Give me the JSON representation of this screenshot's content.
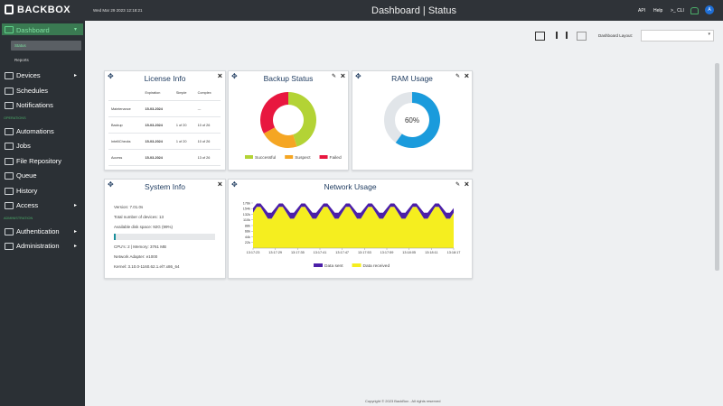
{
  "header": {
    "logo": "BACKBOX",
    "datetime": "Wed Mar 29 2023 12:18:21",
    "title": "Dashboard",
    "subtitle": "Status",
    "links": [
      "API",
      "Help",
      ">_ CLI"
    ],
    "avatar": "A"
  },
  "sidebar": {
    "dashboard": "Dashboard",
    "dashboard_sub": [
      "Status",
      "Reports"
    ],
    "main": [
      "Devices",
      "Schedules",
      "Notifications"
    ],
    "operations_heading": "OPERATIONS",
    "operations": [
      "Automations",
      "Jobs",
      "File Repository",
      "Queue",
      "History",
      "Access"
    ],
    "administration_heading": "ADMINISTRATION",
    "administration": [
      "Authentication",
      "Administration"
    ]
  },
  "toolbar": {
    "layout_label": "Dashboard Layout:"
  },
  "license": {
    "title": "License Info",
    "columns": [
      "Expiration",
      "Simple",
      "Complex"
    ],
    "rows": [
      [
        "Maintenance",
        "15-03-2024",
        null,
        "---"
      ],
      [
        "Backup",
        "15-03-2024",
        "1 of 20",
        "10 of 26"
      ],
      [
        "IntelliChecks",
        "15-03-2024",
        "1 of 20",
        "10 of 26"
      ],
      [
        "Access",
        "15-03-2024",
        null,
        "13 of 26"
      ]
    ]
  },
  "backup_status": {
    "type": "pie",
    "title": "Backup Status",
    "categories": [
      "Successful",
      "Suspect",
      "Failed"
    ],
    "values": [
      45,
      22,
      33
    ],
    "colors": [
      "#b3d335",
      "#f5a623",
      "#e8173f"
    ]
  },
  "ram_usage": {
    "type": "gauge",
    "title": "RAM Usage",
    "value": 60,
    "value_label": "60%",
    "range": [
      0,
      100
    ],
    "color": "#1a9bdc",
    "track_color": "#e1e5e9"
  },
  "system_info": {
    "title": "System Info",
    "lines": [
      "Version: 7.01.0s",
      "Total number of devices: 13",
      "Available disk space: 92G (99%)",
      "CPU's: 2 | Memory: 3761 MB",
      "Network Adapter: e1000",
      "Kernel: 3.10.0-1160.62.1.el7.x86_64"
    ]
  },
  "network_usage": {
    "type": "area",
    "title": "Network Usage",
    "x": [
      0,
      1,
      2,
      3,
      4,
      5,
      6,
      7,
      8,
      9,
      10,
      11,
      12,
      13,
      14,
      15,
      16,
      17,
      18,
      19,
      20,
      21,
      22,
      23,
      24,
      25,
      26,
      27,
      28,
      29,
      30,
      31,
      32,
      33,
      34,
      35,
      36,
      37,
      38,
      39,
      40,
      41,
      42,
      43,
      44,
      45,
      46,
      47,
      48,
      49,
      50,
      51,
      52,
      53,
      54
    ],
    "xlim": [
      0,
      54
    ],
    "xticks": [
      {
        "value": 0,
        "label": "13:17:23"
      },
      {
        "value": 6,
        "label": "13:17:29"
      },
      {
        "value": 12,
        "label": "13:17:35"
      },
      {
        "value": 18,
        "label": "13:17:41"
      },
      {
        "value": 24,
        "label": "13:17:47"
      },
      {
        "value": 30,
        "label": "13:17:53"
      },
      {
        "value": 36,
        "label": "13:17:59"
      },
      {
        "value": 42,
        "label": "13:18:05"
      },
      {
        "value": 48,
        "label": "13:18:11"
      },
      {
        "value": 54,
        "label": "13:18:17"
      }
    ],
    "ylim": [
      0,
      190
    ],
    "yticks": [
      {
        "value": 22,
        "label": "22k"
      },
      {
        "value": 44,
        "label": "44k"
      },
      {
        "value": 66,
        "label": "66k"
      },
      {
        "value": 88,
        "label": "88k"
      },
      {
        "value": 110,
        "label": "110k"
      },
      {
        "value": 132,
        "label": "132k"
      },
      {
        "value": 154,
        "label": "154k"
      },
      {
        "value": 176,
        "label": "176k"
      }
    ],
    "series": [
      {
        "name": "Data received",
        "color": "#f5ee1f",
        "values": [
          138,
          161,
          161,
          138,
          115,
          115,
          138,
          161,
          161,
          138,
          115,
          115,
          138,
          161,
          161,
          138,
          115,
          115,
          138,
          161,
          161,
          138,
          115,
          115,
          138,
          161,
          161,
          138,
          115,
          115,
          138,
          161,
          161,
          138,
          115,
          115,
          138,
          161,
          161,
          138,
          115,
          115,
          138,
          161,
          161,
          138,
          115,
          115,
          138,
          161,
          161,
          138,
          115,
          115,
          138
        ]
      },
      {
        "name": "Data sent",
        "color": "#4b1fa8",
        "values": [
          18,
          13,
          13,
          18,
          23,
          23,
          18,
          13,
          13,
          18,
          23,
          23,
          18,
          13,
          13,
          18,
          23,
          23,
          18,
          13,
          13,
          18,
          23,
          23,
          18,
          13,
          13,
          18,
          23,
          23,
          18,
          13,
          13,
          18,
          23,
          23,
          18,
          13,
          13,
          18,
          23,
          23,
          18,
          13,
          13,
          18,
          23,
          23,
          18,
          13,
          13,
          18,
          23,
          23,
          18
        ]
      }
    ]
  },
  "footer": "Copyright © 2023 BackBox - All rights reserved"
}
